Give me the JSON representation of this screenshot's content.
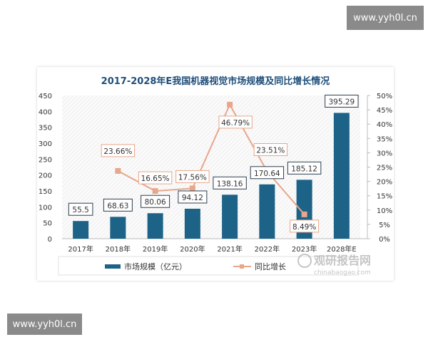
{
  "watermarks": {
    "top": "www.yyh0l.cn",
    "bottom": "www.yyh0l.cn"
  },
  "source_logo": {
    "name": "观研报告网",
    "url_text": "chinabaogao.com"
  },
  "colors": {
    "bar": "#1d6388",
    "line": "#e8a68a",
    "title": "#1f4e79"
  },
  "chart_data": {
    "type": "bar+line",
    "title": "2017-2028年E我国机器视觉市场规模及同比增长情况",
    "categories": [
      "2017年",
      "2018年",
      "2019年",
      "2020年",
      "2021年",
      "2022年",
      "2023年",
      "2028年E"
    ],
    "series": [
      {
        "name": "市场规模（亿元）",
        "type": "bar",
        "axis": "left",
        "values": [
          55.5,
          68.63,
          80.06,
          94.12,
          138.16,
          170.64,
          185.12,
          395.29
        ],
        "labels": [
          "55.5",
          "68.63",
          "80.06",
          "94.12",
          "138.16",
          "170.64",
          "185.12",
          "395.29"
        ]
      },
      {
        "name": "同比增长",
        "type": "line",
        "axis": "right",
        "values": [
          null,
          23.66,
          16.65,
          17.56,
          46.79,
          23.51,
          8.49,
          null
        ],
        "labels": [
          "",
          "23.66%",
          "16.65%",
          "17.56%",
          "46.79%",
          "23.51%",
          "8.49%",
          ""
        ]
      }
    ],
    "left_axis": {
      "range": [
        0,
        450
      ],
      "ticks": [
        "0",
        "50",
        "100",
        "150",
        "200",
        "250",
        "300",
        "350",
        "400",
        "450"
      ]
    },
    "right_axis": {
      "range": [
        0,
        50
      ],
      "ticks": [
        "0%",
        "5%",
        "10%",
        "15%",
        "20%",
        "25%",
        "30%",
        "35%",
        "40%",
        "45%",
        "50%"
      ]
    },
    "legend": {
      "position": "bottom",
      "bar_label": "市场规模（亿元）",
      "line_label": "同比增长"
    }
  }
}
